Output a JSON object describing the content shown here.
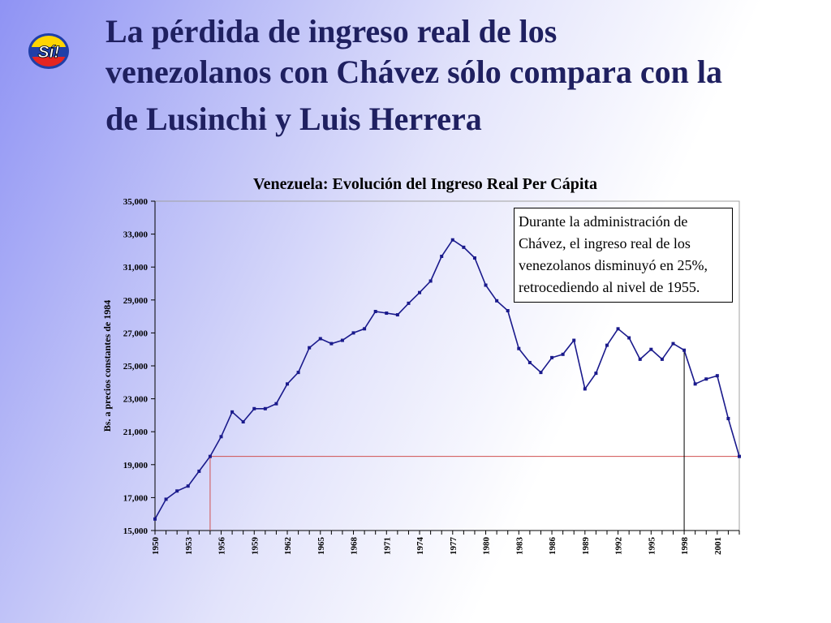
{
  "slide": {
    "title_lines": [
      "La pérdida de ingreso real de los",
      "venezolanos con Chávez sólo compara con la",
      "de Lusinchi y Luis Herrera"
    ],
    "logo_text": "Sí!"
  },
  "annotation": {
    "lines": [
      "Durante la administración de",
      "Chávez, el ingreso real de los",
      "venezolanos disminuyó en 25%,",
      "retrocediendo al nivel de 1955."
    ]
  },
  "colors": {
    "series": "#1a1a8c",
    "reference_line": "#d05050",
    "marker_line": "#000000",
    "title_text": "#1f2060",
    "logo_yellow": "#ffd500",
    "logo_blue": "#1f3fa8",
    "logo_red": "#e52521"
  },
  "chart_data": {
    "type": "line",
    "title": "Venezuela: Evolución del Ingreso Real Per Cápita",
    "ylabel": "Bs. a precios constantes de 1984",
    "xlabel": "",
    "ylim": [
      15000,
      35000
    ],
    "yticks": [
      15000,
      17000,
      19000,
      21000,
      23000,
      25000,
      27000,
      29000,
      31000,
      33000,
      35000
    ],
    "ytick_labels": [
      "15,000",
      "17,000",
      "19,000",
      "21,000",
      "23,000",
      "25,000",
      "27,000",
      "29,000",
      "31,000",
      "33,000",
      "35,000"
    ],
    "xlim": [
      1950,
      2003
    ],
    "xtick_labels": [
      "1950",
      "1953",
      "1956",
      "1959",
      "1962",
      "1965",
      "1968",
      "1971",
      "1974",
      "1977",
      "1980",
      "1983",
      "1986",
      "1989",
      "1992",
      "1995",
      "1998",
      "2001"
    ],
    "grid": false,
    "x": [
      1950,
      1951,
      1952,
      1953,
      1954,
      1955,
      1956,
      1957,
      1958,
      1959,
      1960,
      1961,
      1962,
      1963,
      1964,
      1965,
      1966,
      1967,
      1968,
      1969,
      1970,
      1971,
      1972,
      1973,
      1974,
      1975,
      1976,
      1977,
      1978,
      1979,
      1980,
      1981,
      1982,
      1983,
      1984,
      1985,
      1986,
      1987,
      1988,
      1989,
      1990,
      1991,
      1992,
      1993,
      1994,
      1995,
      1996,
      1997,
      1998,
      1999,
      2000,
      2001,
      2002,
      2003
    ],
    "series": [
      {
        "values": [
          15700,
          16900,
          17400,
          17700,
          18600,
          19500,
          20700,
          22200,
          21600,
          22400,
          22400,
          22700,
          23900,
          24600,
          26100,
          26650,
          26350,
          26550,
          27000,
          27250,
          28300,
          28200,
          28100,
          28800,
          29450,
          30150,
          31650,
          32650,
          32200,
          31550,
          29900,
          28950,
          28350,
          26050,
          25200,
          24600,
          25500,
          25700,
          26550,
          23600,
          24550,
          26250,
          27250,
          26700,
          25400,
          26000,
          25400,
          26350,
          25950,
          23900,
          24200,
          24400,
          21800,
          19500
        ]
      }
    ],
    "reference_line": {
      "y": 19500,
      "from_x": 1955,
      "to_x": 2003
    },
    "marker_lines": [
      1955,
      1998
    ]
  }
}
